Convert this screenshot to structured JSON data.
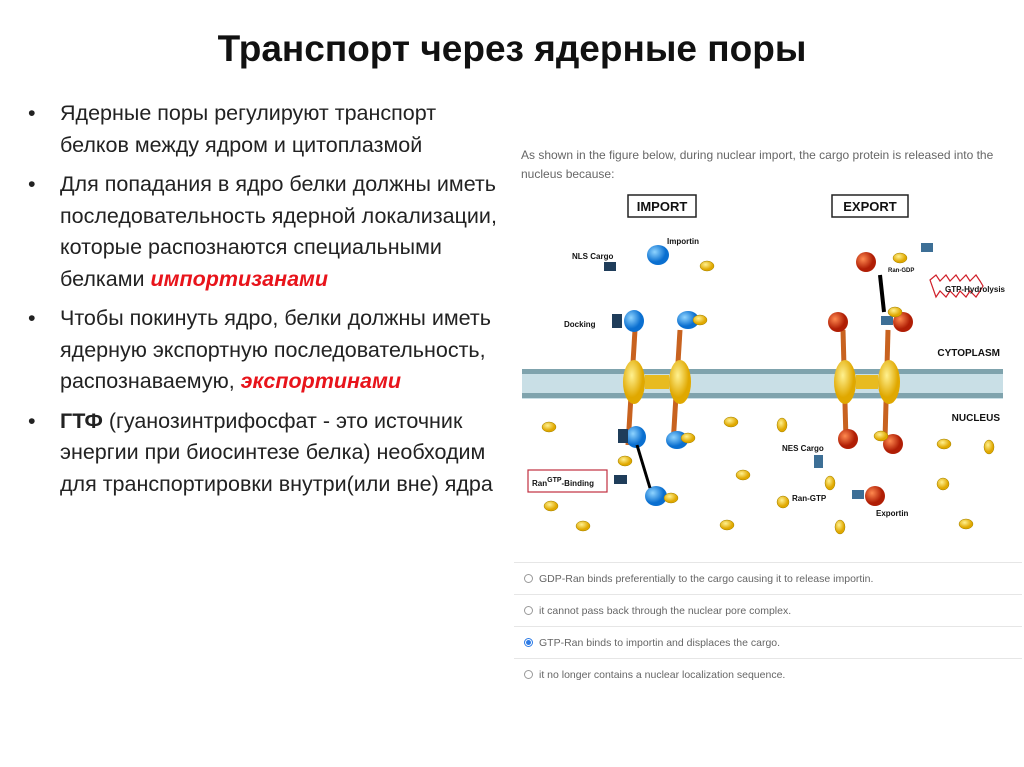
{
  "title": "Транспорт через ядерные поры",
  "bullets": [
    {
      "text": "Ядерные поры регулируют транспорт белков между ядром и цитоплазмой"
    },
    {
      "text": "Для попадания в ядро белки должны иметь последовательность ядерной локализации, которые распознаются специальными белками ",
      "highlight": "импортизанами"
    },
    {
      "text": "Чтобы покинуть ядро, белки должны иметь ядерную экспортную последовательность, распознаваемую, ",
      "highlight": "экспортинами"
    },
    {
      "bold": "ГТФ",
      "text": " (гуанозинтрифосфат - это источник энергии при биосинтезе белка) необходим для транспортировки внутри(или вне) ядра"
    }
  ],
  "figure": {
    "question": "As shown in the figure below, during nuclear import, the cargo protein is released into the nucleus because:",
    "import_label": "IMPORT",
    "export_label": "EXPORT",
    "labels": {
      "importin": "Importin",
      "nls_cargo": "NLS Cargo",
      "docking": "Docking",
      "cytoplasm": "CYTOPLASM",
      "nucleus": "NUCLEUS",
      "ran": "Ran",
      "gtp_sup": "GTP",
      "binding": "-Binding",
      "nes_cargo": "NES Cargo",
      "ran_gtp": "Ran-GTP",
      "exportin": "Exportin",
      "ran_gdp": "Ran-GDP",
      "gtp_hydrolysis": "GTP-Hydrolysis",
      "gtp": "GTP",
      "gdp": "GDP",
      "nes": "NES",
      "nls": "NLS"
    },
    "colors": {
      "importin": "#1e90e8",
      "exportin": "#d93a10",
      "pore": "#f2c21a",
      "membrane": "#bcd6e0",
      "gtp": "#f0d020"
    },
    "options": [
      {
        "text": "GDP-Ran binds preferentially to the cargo causing it to release importin.",
        "selected": false
      },
      {
        "text": "it cannot pass back through the nuclear pore complex.",
        "selected": false
      },
      {
        "text": "GTP-Ran binds to importin and displaces the cargo.",
        "selected": true
      },
      {
        "text": "it no longer contains a nuclear localization sequence.",
        "selected": false
      }
    ]
  }
}
